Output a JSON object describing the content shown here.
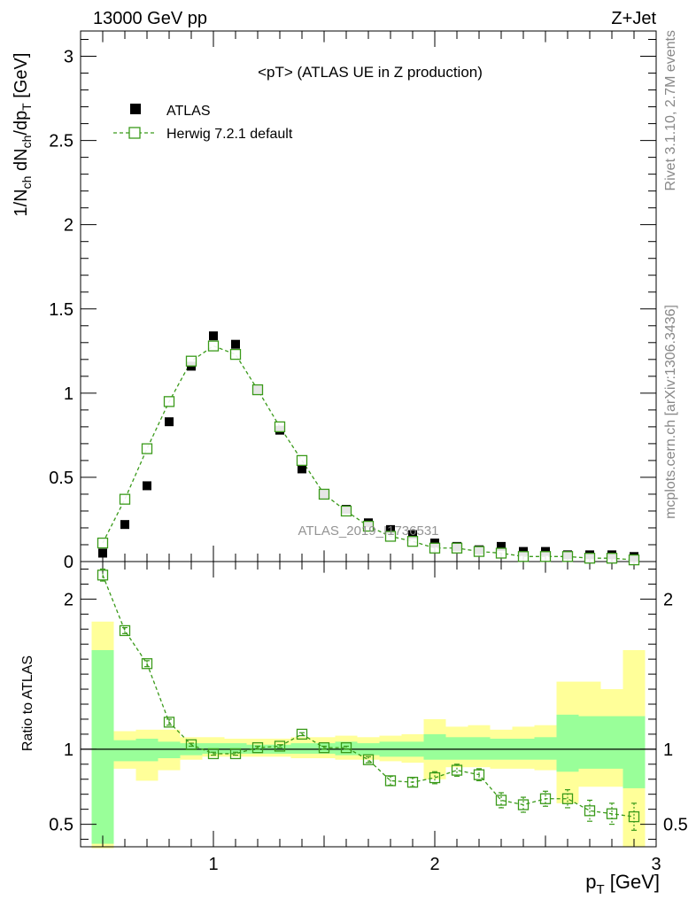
{
  "header": {
    "energy_label": "13000 GeV pp",
    "process_label": "Z+Jet"
  },
  "side": {
    "rivet_label": "Rivet 3.1.10,  2.7M events",
    "mcplots_label": "mcplots.cern.ch [arXiv:1306.3436]"
  },
  "colors": {
    "data": "#000000",
    "mc": "#3a9a1a",
    "band_inner": "#99ff99",
    "band_outer": "#ffff99",
    "watermark": "#888888"
  },
  "chart_data": [
    {
      "type": "scatter",
      "panel": "main",
      "title": "<pT> (ATLAS UE in Z production)",
      "xlabel": "p_T [GeV]",
      "ylabel": "1/N_ch dN_ch/dp_T [GeV]",
      "xlim": [
        0.4,
        3.0
      ],
      "ylim": [
        0,
        3.15
      ],
      "yticks": [
        0,
        0.5,
        1,
        1.5,
        2,
        2.5,
        3
      ],
      "ytick_labels": [
        "0",
        "0.5",
        "1",
        "1.5",
        "2",
        "2.5",
        "3"
      ],
      "watermark": "ATLAS_2019_I1736531",
      "legend": {
        "position": "top-left",
        "entries": [
          "ATLAS",
          "Herwig 7.2.1 default"
        ]
      },
      "x": [
        0.5,
        0.6,
        0.7,
        0.8,
        0.9,
        1.0,
        1.1,
        1.2,
        1.3,
        1.4,
        1.5,
        1.6,
        1.7,
        1.8,
        1.9,
        2.0,
        2.1,
        2.2,
        2.3,
        2.4,
        2.5,
        2.6,
        2.7,
        2.8,
        2.9
      ],
      "series": [
        {
          "name": "ATLAS",
          "marker": "filled-square",
          "values": [
            0.05,
            0.22,
            0.45,
            0.83,
            1.16,
            1.34,
            1.29,
            1.02,
            0.78,
            0.55,
            0.4,
            0.31,
            0.23,
            0.19,
            0.16,
            0.11,
            0.09,
            0.07,
            0.09,
            0.06,
            0.06,
            0.04,
            0.04,
            0.04,
            0.03
          ]
        },
        {
          "name": "Herwig 7.2.1 default",
          "marker": "open-square",
          "line": "dashed",
          "values": [
            0.11,
            0.37,
            0.67,
            0.95,
            1.19,
            1.28,
            1.23,
            1.02,
            0.8,
            0.6,
            0.4,
            0.3,
            0.21,
            0.15,
            0.12,
            0.08,
            0.08,
            0.06,
            0.05,
            0.03,
            0.03,
            0.03,
            0.02,
            0.02,
            0.01
          ]
        }
      ]
    },
    {
      "type": "scatter",
      "panel": "ratio",
      "xlabel": "p_T [GeV]",
      "ylabel": "Ratio to ATLAS",
      "xlim": [
        0.4,
        3.0
      ],
      "ylim": [
        0.35,
        2.25
      ],
      "yticks": [
        0.5,
        1,
        2
      ],
      "ytick_labels": [
        "0.5",
        "1",
        "2"
      ],
      "xticks": [
        1,
        2,
        3
      ],
      "xtick_labels": [
        "1",
        "2",
        "3"
      ],
      "bins": [
        [
          0.45,
          0.55
        ],
        [
          0.55,
          0.65
        ],
        [
          0.65,
          0.75
        ],
        [
          0.75,
          0.85
        ],
        [
          0.85,
          0.95
        ],
        [
          0.95,
          1.05
        ],
        [
          1.05,
          1.15
        ],
        [
          1.15,
          1.25
        ],
        [
          1.25,
          1.35
        ],
        [
          1.35,
          1.45
        ],
        [
          1.45,
          1.55
        ],
        [
          1.55,
          1.65
        ],
        [
          1.65,
          1.75
        ],
        [
          1.75,
          1.85
        ],
        [
          1.85,
          1.95
        ],
        [
          1.95,
          2.05
        ],
        [
          2.05,
          2.15
        ],
        [
          2.15,
          2.25
        ],
        [
          2.25,
          2.35
        ],
        [
          2.35,
          2.45
        ],
        [
          2.45,
          2.55
        ],
        [
          2.55,
          2.65
        ],
        [
          2.65,
          2.75
        ],
        [
          2.75,
          2.85
        ],
        [
          2.85,
          2.95
        ]
      ],
      "band_outer": [
        [
          0.34,
          1.85
        ],
        [
          0.87,
          1.12
        ],
        [
          0.79,
          1.13
        ],
        [
          0.86,
          1.13
        ],
        [
          0.93,
          1.08
        ],
        [
          0.95,
          1.08
        ],
        [
          0.95,
          1.07
        ],
        [
          0.95,
          1.07
        ],
        [
          0.95,
          1.07
        ],
        [
          0.94,
          1.08
        ],
        [
          0.94,
          1.08
        ],
        [
          0.93,
          1.09
        ],
        [
          0.93,
          1.08
        ],
        [
          0.92,
          1.09
        ],
        [
          0.91,
          1.1
        ],
        [
          0.8,
          1.2
        ],
        [
          0.88,
          1.15
        ],
        [
          0.88,
          1.16
        ],
        [
          0.87,
          1.13
        ],
        [
          0.87,
          1.15
        ],
        [
          0.86,
          1.16
        ],
        [
          0.64,
          1.45
        ],
        [
          0.75,
          1.45
        ],
        [
          0.75,
          1.4
        ],
        [
          0.35,
          1.66
        ]
      ],
      "band_inner": [
        [
          0.37,
          1.66
        ],
        [
          0.92,
          1.06
        ],
        [
          0.92,
          1.07
        ],
        [
          0.94,
          1.05
        ],
        [
          0.96,
          1.04
        ],
        [
          0.97,
          1.04
        ],
        [
          0.97,
          1.04
        ],
        [
          0.97,
          1.03
        ],
        [
          0.97,
          1.03
        ],
        [
          0.97,
          1.04
        ],
        [
          0.97,
          1.04
        ],
        [
          0.96,
          1.05
        ],
        [
          0.96,
          1.04
        ],
        [
          0.95,
          1.05
        ],
        [
          0.95,
          1.05
        ],
        [
          0.93,
          1.1
        ],
        [
          0.93,
          1.08
        ],
        [
          0.93,
          1.08
        ],
        [
          0.93,
          1.07
        ],
        [
          0.93,
          1.07
        ],
        [
          0.93,
          1.08
        ],
        [
          0.85,
          1.23
        ],
        [
          0.87,
          1.22
        ],
        [
          0.87,
          1.22
        ],
        [
          0.74,
          1.22
        ]
      ],
      "x": [
        0.5,
        0.6,
        0.7,
        0.8,
        0.9,
        1.0,
        1.1,
        1.2,
        1.3,
        1.4,
        1.5,
        1.6,
        1.7,
        1.8,
        1.9,
        2.0,
        2.1,
        2.2,
        2.3,
        2.4,
        2.5,
        2.6,
        2.7,
        2.8,
        2.9
      ],
      "values": [
        2.16,
        1.79,
        1.57,
        1.18,
        1.03,
        0.97,
        0.97,
        1.01,
        1.02,
        1.1,
        1.01,
        1.01,
        0.93,
        0.79,
        0.78,
        0.81,
        0.86,
        0.83,
        0.66,
        0.63,
        0.67,
        0.67,
        0.59,
        0.57,
        0.55
      ],
      "errors": [
        0.04,
        0.02,
        0.02,
        0.02,
        0.01,
        0.01,
        0.01,
        0.01,
        0.01,
        0.01,
        0.01,
        0.01,
        0.02,
        0.03,
        0.03,
        0.04,
        0.04,
        0.04,
        0.05,
        0.05,
        0.05,
        0.06,
        0.07,
        0.07,
        0.09
      ]
    }
  ]
}
